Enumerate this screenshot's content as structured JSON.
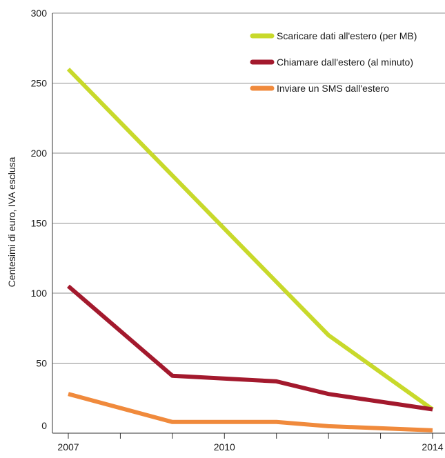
{
  "chart_data": {
    "type": "line",
    "title": "",
    "xlabel": "",
    "ylabel": "Centesimi di euro, IVA esclusa",
    "x": [
      2007,
      2008,
      2009,
      2010,
      2011,
      2012,
      2013,
      2014
    ],
    "x_tick_labels": [
      "2007",
      "",
      "",
      "2010",
      "",
      "",
      "",
      "2014"
    ],
    "y_ticks": [
      0,
      50,
      100,
      150,
      200,
      250,
      300
    ],
    "y_tick_labels": [
      "0",
      "50",
      "100",
      "150",
      "200",
      "250",
      "300"
    ],
    "xlim": [
      2007,
      2014
    ],
    "ylim": [
      0,
      300
    ],
    "grid": "horizontal",
    "legend_position": "top-right",
    "series": [
      {
        "name": "Scaricare dati all'estero (per MB)",
        "color": "#c8d92b",
        "x": [
          2007,
          2009,
          2011,
          2012,
          2014
        ],
        "values": [
          260,
          184,
          108,
          70,
          17
        ]
      },
      {
        "name": "Chiamare dall'estero (al minuto)",
        "color": "#a3192d",
        "x": [
          2007,
          2009,
          2011,
          2012,
          2014
        ],
        "values": [
          105,
          41,
          37,
          28,
          17
        ]
      },
      {
        "name": "Inviare un SMS dall'estero",
        "color": "#f08a3c",
        "x": [
          2007,
          2009,
          2011,
          2012,
          2014
        ],
        "values": [
          28,
          8,
          8,
          5,
          2
        ]
      }
    ]
  }
}
